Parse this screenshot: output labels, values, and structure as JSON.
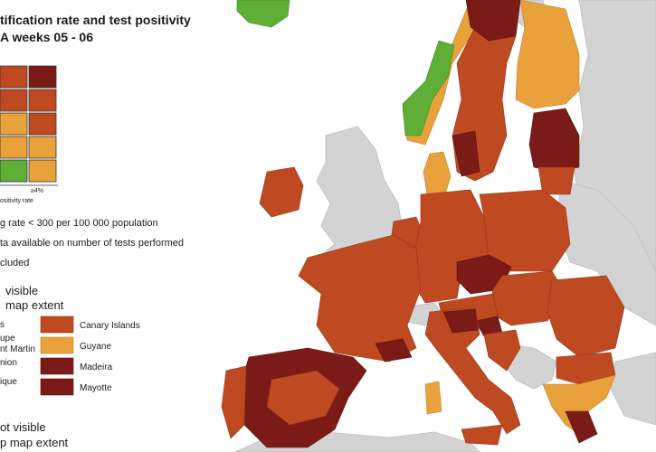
{
  "header": {
    "title_line1": "tification rate and test positivity",
    "title_line2": "A weeks 05 - 06"
  },
  "legend": {
    "axis_value": "≥4%",
    "axis_title": "ositivity rate",
    "notes": [
      "g rate < 300 per 100 000 population",
      "ta available on number of tests performed",
      "cluded"
    ]
  },
  "visible_section": {
    "heading_line1": "visible",
    "heading_line2": "map extent",
    "left_labels": [
      "s",
      "upe",
      "nt Martin",
      "nion",
      "ique"
    ],
    "regions": [
      "Canary Islands",
      "Guyane",
      "Madeira",
      "Mayotte"
    ]
  },
  "not_visible_section": {
    "heading_line1": "ot visible",
    "heading_line2": "p map extent"
  }
}
